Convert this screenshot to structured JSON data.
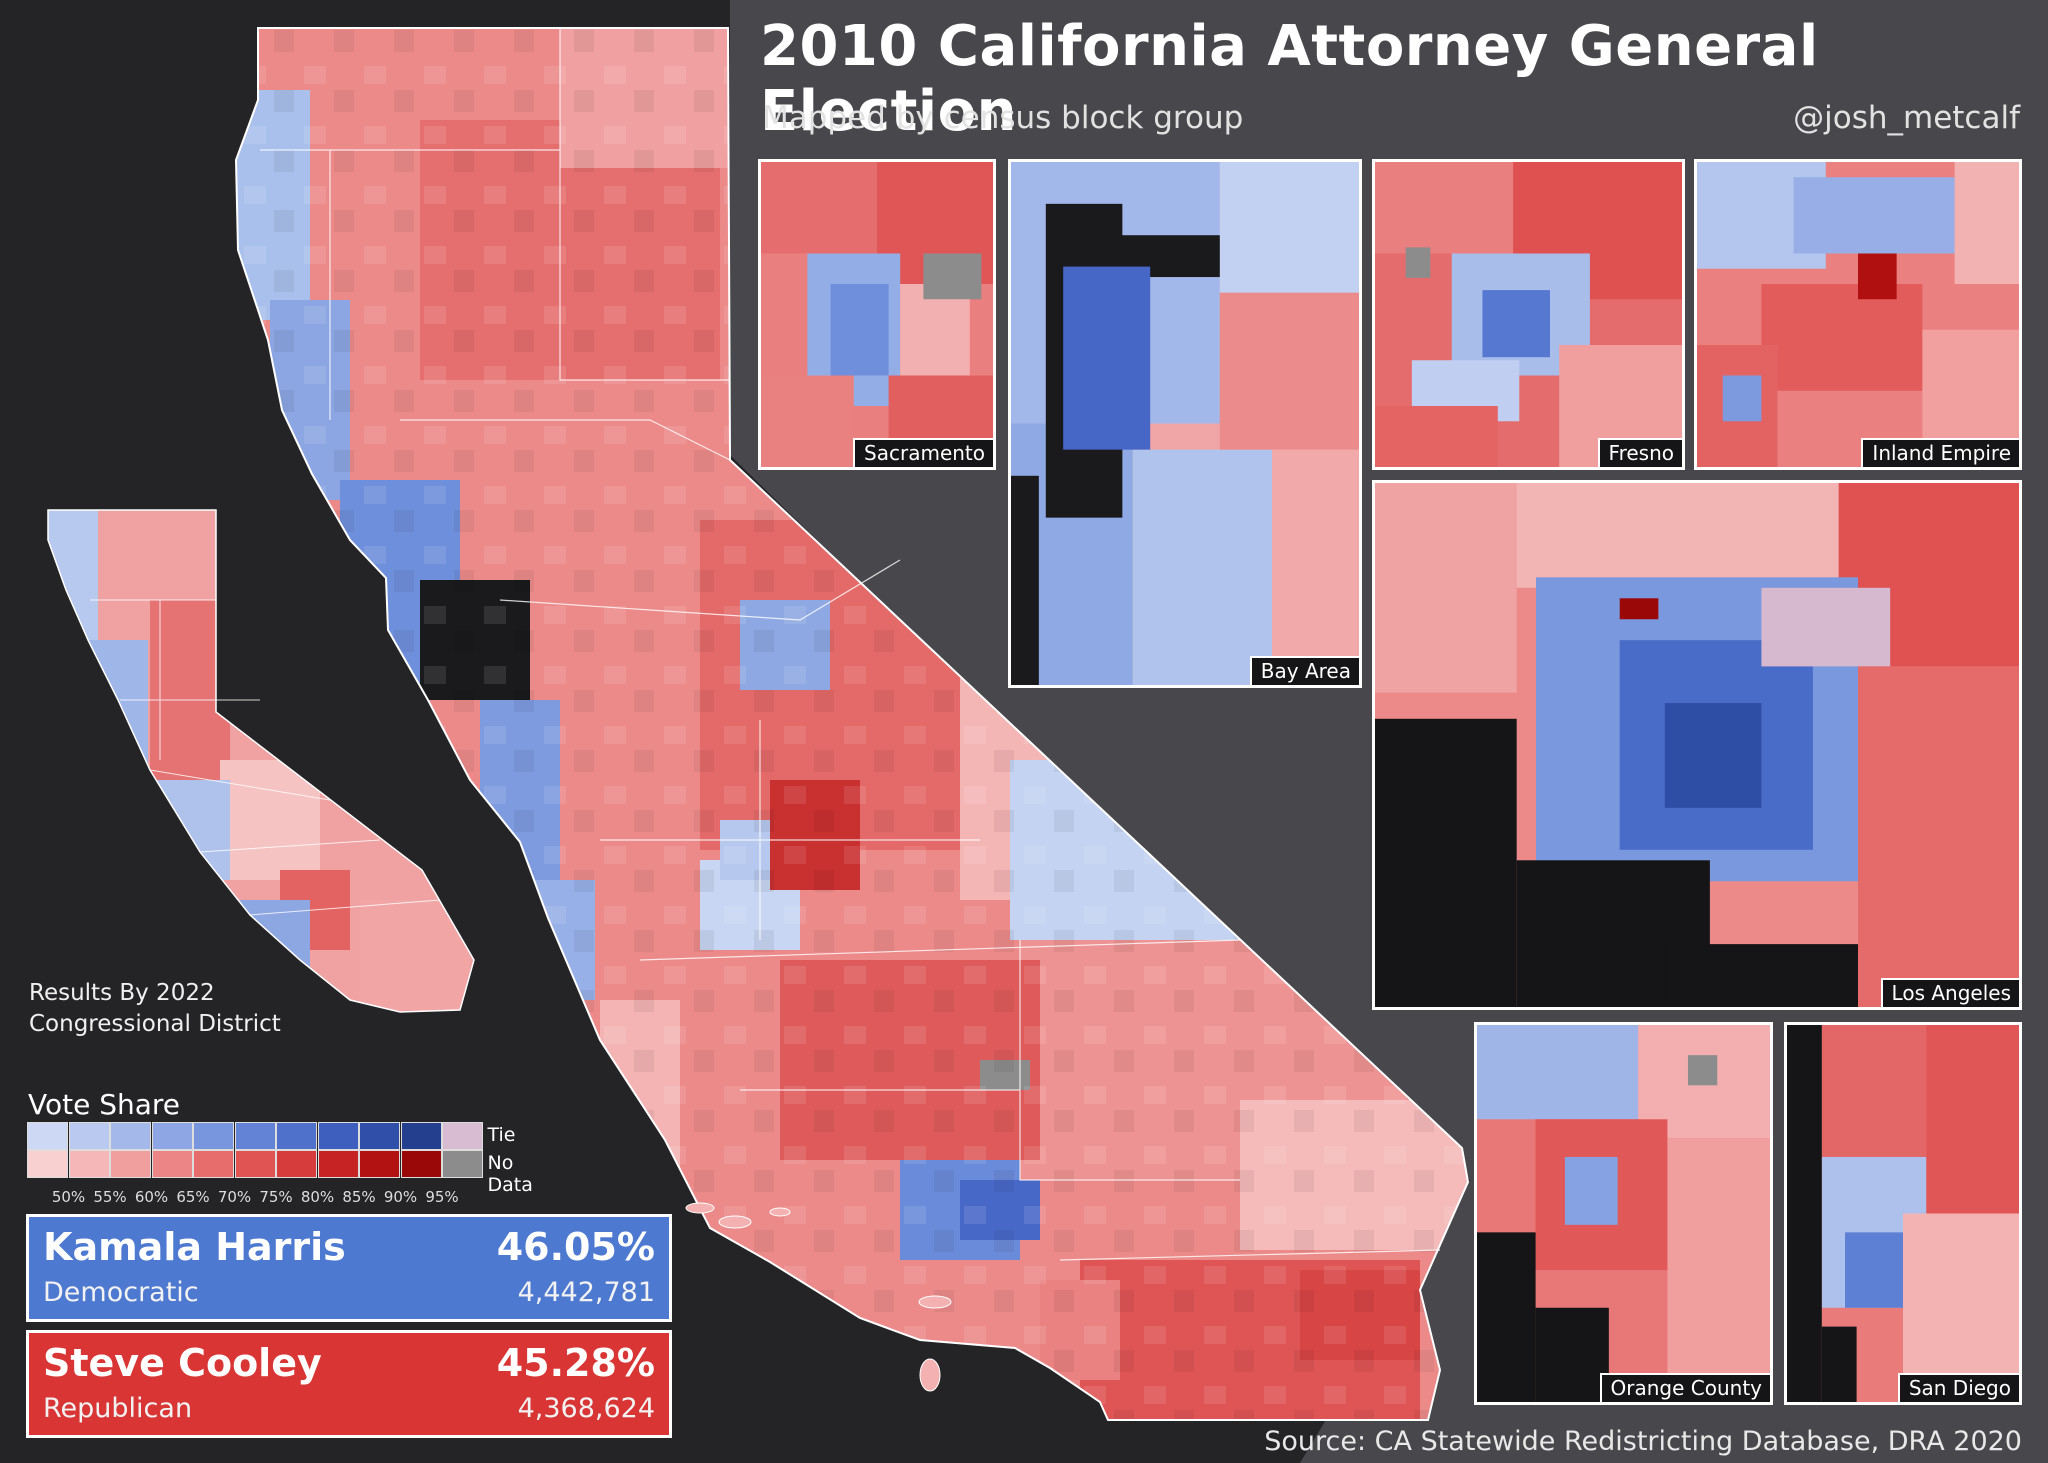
{
  "title": "2010 California Attorney General Election",
  "subtitle": "Mapped by census block group",
  "handle": "@josh_metcalf",
  "district_note": [
    "Results By 2022",
    "Congressional District"
  ],
  "legend": {
    "title": "Vote Share",
    "ticks": [
      "50%",
      "55%",
      "60%",
      "65%",
      "70%",
      "75%",
      "80%",
      "85%",
      "90%",
      "95%"
    ],
    "blue_scale": [
      "#cdd9f4",
      "#b9c9ef",
      "#a4b8ea",
      "#8ea7e4",
      "#7896de",
      "#6384d6",
      "#4f71cc",
      "#3e5fbe",
      "#304fa8",
      "#243f8e"
    ],
    "red_scale": [
      "#f9d0d0",
      "#f5b7b7",
      "#f19e9e",
      "#ec8585",
      "#e76c6c",
      "#e05454",
      "#d63c3c",
      "#c62424",
      "#b31212",
      "#9a0808"
    ],
    "tie": {
      "label": "Tie",
      "color": "#d8bcd2"
    },
    "no_data": {
      "label": "No Data",
      "color": "#8c8c8c"
    }
  },
  "insets": [
    {
      "label": "Sacramento"
    },
    {
      "label": "Bay Area"
    },
    {
      "label": "Fresno"
    },
    {
      "label": "Inland Empire"
    },
    {
      "label": "Los Angeles"
    },
    {
      "label": "Orange County"
    },
    {
      "label": "San Diego"
    }
  ],
  "candidates": [
    {
      "name": "Kamala Harris",
      "party": "Democratic",
      "percent": "46.05%",
      "votes": "4,442,781",
      "color": "#4d79d0"
    },
    {
      "name": "Steve Cooley",
      "party": "Republican",
      "percent": "45.28%",
      "votes": "4,368,624",
      "color": "#d93535"
    }
  ],
  "source": "Source: CA Statewide Redistricting Database, DRA 2020",
  "colors": {
    "background": "#242427",
    "ocean": "#151517",
    "land_outside": "#48484c"
  }
}
